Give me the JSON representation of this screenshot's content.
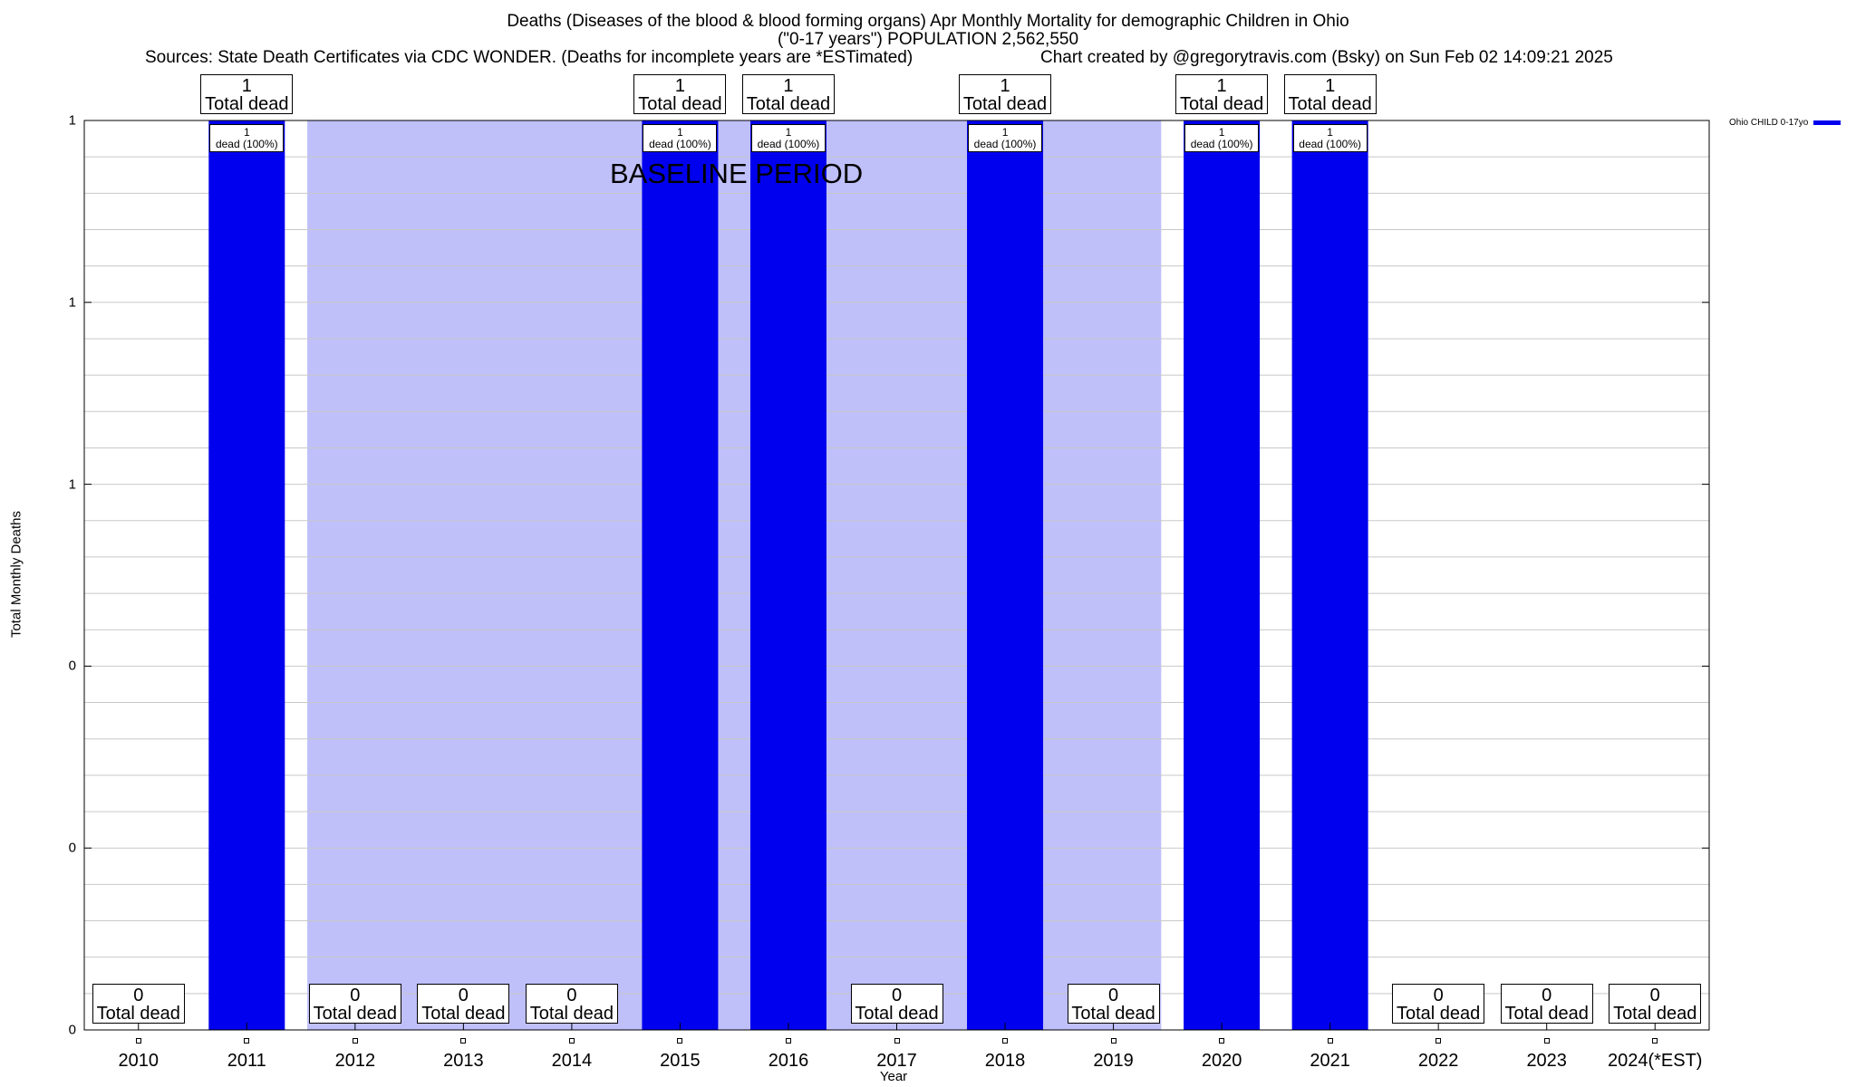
{
  "header": {
    "title_line1": "Deaths (Diseases of the blood & blood forming organs) Apr Monthly Mortality for demographic Children in Ohio",
    "title_line2": "(\"0-17 years\") POPULATION 2,562,550",
    "sources": "Sources: State Death Certificates via CDC WONDER. (Deaths for incomplete years are *ESTimated)",
    "credit": "Chart created by @gregorytravis.com (Bsky) on Sun Feb 02 14:09:21 2025"
  },
  "chart_data": {
    "type": "bar",
    "xlabel": "Year",
    "ylabel": "Total Monthly Deaths",
    "ylim": [
      0,
      1
    ],
    "ytick_labels": [
      "0",
      "0",
      "0",
      "1",
      "1",
      "1"
    ],
    "grid": true,
    "legend_placement": "top-right",
    "categories": [
      "2010",
      "2011",
      "2012",
      "2013",
      "2014",
      "2015",
      "2016",
      "2017",
      "2018",
      "2019",
      "2020",
      "2021",
      "2022",
      "2023",
      "2024(*EST)"
    ],
    "series": [
      {
        "name": "Ohio CHILD 0-17yo",
        "values": [
          0,
          1,
          0,
          0,
          0,
          1,
          1,
          0,
          1,
          0,
          1,
          1,
          0,
          0,
          0
        ],
        "color": "#0000ee"
      }
    ],
    "total_label_suffix": "Total dead",
    "percent_labels": [
      "",
      "1\ndead (100%)",
      "",
      "",
      "",
      "1\ndead (100%)",
      "1\ndead (100%)",
      "",
      "1\ndead (100%)",
      "",
      "1\ndead (100%)",
      "1\ndead (100%)",
      "",
      "",
      ""
    ],
    "baseline": {
      "label": "BASELINE PERIOD",
      "start": "2012",
      "end": "2019",
      "color": "#bfbffa"
    }
  }
}
